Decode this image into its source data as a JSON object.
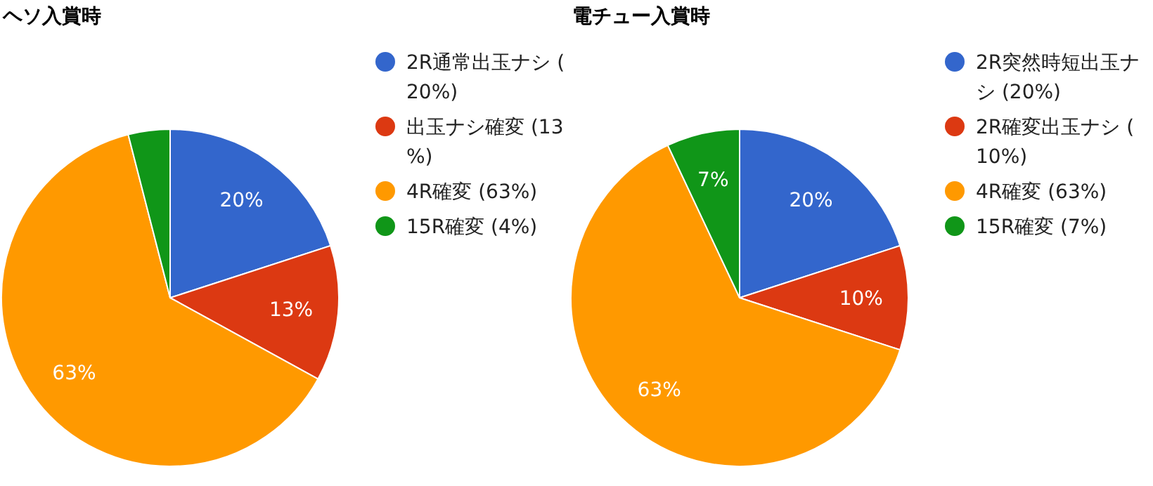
{
  "chart_data": [
    {
      "type": "pie",
      "title": "ヘソ入賞時",
      "categories": [
        "2R通常出玉ナシ (20%)",
        "出玉ナシ確変 (13%)",
        "4R確変 (63%)",
        "15R確変 (4%)"
      ],
      "values": [
        20,
        13,
        63,
        4
      ],
      "colors": [
        "#3366cc",
        "#dc3912",
        "#ff9900",
        "#109618"
      ],
      "value_labels": [
        "20%",
        "13%",
        "63%",
        null
      ],
      "legend": "right"
    },
    {
      "type": "pie",
      "title": "電チュー入賞時",
      "categories": [
        "2R突然時短出玉ナシ (20%)",
        "2R確変出玉ナシ (10%)",
        "4R確変 (63%)",
        "15R確変 (7%)"
      ],
      "values": [
        20,
        10,
        63,
        7
      ],
      "colors": [
        "#3366cc",
        "#dc3912",
        "#ff9900",
        "#109618"
      ],
      "value_labels": [
        "20%",
        "10%",
        "63%",
        "7%"
      ],
      "legend": "right"
    }
  ]
}
